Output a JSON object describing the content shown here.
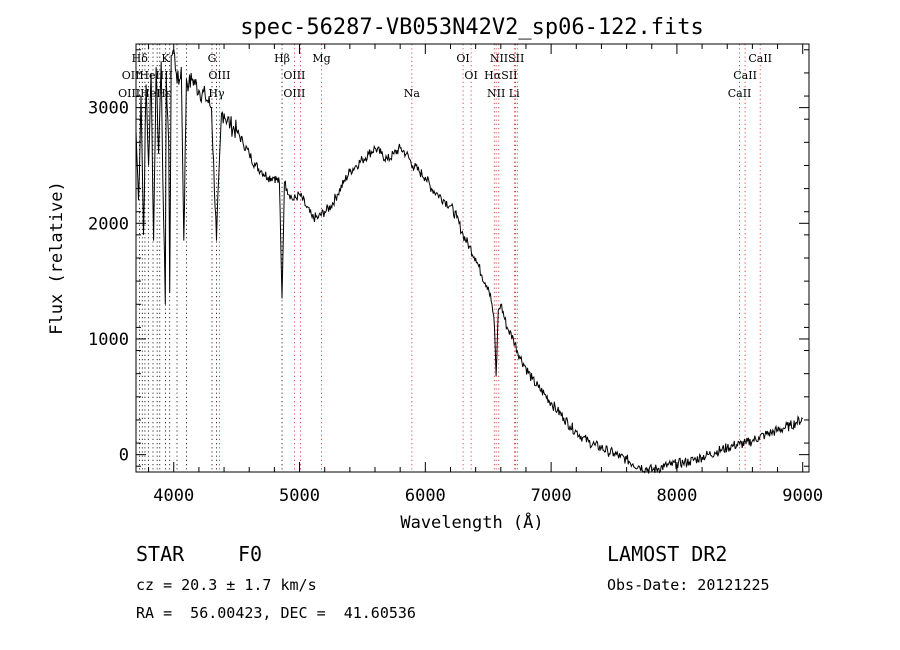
{
  "chart_data": {
    "type": "line",
    "title": "spec-56287-VB053N42V2_sp06-122.fits",
    "xlabel": "Wavelength (Å)",
    "ylabel": "Flux (relative)",
    "xlim": [
      3700,
      9050
    ],
    "ylim": [
      -150,
      3550
    ],
    "xticks": [
      4000,
      5000,
      6000,
      7000,
      8000,
      9000
    ],
    "yticks": [
      0,
      1000,
      2000,
      3000
    ],
    "grid": false,
    "series": [
      {
        "x": [
          3700,
          3720,
          3740,
          3760,
          3780,
          3800,
          3820,
          3840,
          3860,
          3880,
          3900,
          3920,
          3933,
          3940,
          3960,
          3968,
          3980,
          4000,
          4020,
          4040,
          4060,
          4080,
          4101,
          4120,
          4150,
          4200,
          4250,
          4300,
          4340,
          4380,
          4400,
          4450,
          4500,
          4550,
          4600,
          4650,
          4700,
          4750,
          4800,
          4840,
          4861,
          4880,
          4900,
          4950,
          5000,
          5050,
          5100,
          5150,
          5200,
          5250,
          5300,
          5350,
          5400,
          5450,
          5500,
          5550,
          5600,
          5650,
          5700,
          5750,
          5800,
          5850,
          5900,
          5950,
          6000,
          6050,
          6100,
          6150,
          6200,
          6250,
          6300,
          6350,
          6400,
          6450,
          6500,
          6530,
          6550,
          6563,
          6580,
          6600,
          6650,
          6700,
          6750,
          6800,
          6850,
          6900,
          6950,
          7000,
          7050,
          7100,
          7150,
          7200,
          7250,
          7300,
          7350,
          7400,
          7450,
          7500,
          7550,
          7600,
          7650,
          7700,
          7750,
          7800,
          7850,
          7900,
          7950,
          8000,
          8050,
          8100,
          8150,
          8200,
          8250,
          8300,
          8350,
          8400,
          8450,
          8500,
          8550,
          8600,
          8650,
          8700,
          8750,
          8800,
          8850,
          8900,
          8950,
          9000
        ],
        "y": [
          2800,
          2200,
          3100,
          1900,
          3200,
          2500,
          3300,
          1850,
          3350,
          2600,
          3400,
          2000,
          1300,
          3300,
          2700,
          1400,
          3450,
          3500,
          3300,
          3200,
          3350,
          1850,
          3250,
          3200,
          3250,
          3150,
          3100,
          3000,
          1850,
          2950,
          2950,
          2850,
          2800,
          2700,
          2600,
          2500,
          2450,
          2400,
          2400,
          2350,
          1350,
          2350,
          2300,
          2200,
          2250,
          2150,
          2050,
          2050,
          2100,
          2150,
          2250,
          2350,
          2450,
          2500,
          2550,
          2600,
          2650,
          2600,
          2550,
          2600,
          2650,
          2600,
          2500,
          2450,
          2400,
          2300,
          2250,
          2200,
          2150,
          2050,
          1900,
          1800,
          1700,
          1550,
          1450,
          1300,
          1100,
          680,
          1250,
          1300,
          1100,
          1000,
          850,
          750,
          650,
          580,
          520,
          450,
          380,
          320,
          250,
          200,
          150,
          110,
          80,
          60,
          30,
          10,
          -20,
          -40,
          -80,
          -100,
          -120,
          -130,
          -120,
          -100,
          -90,
          -80,
          -70,
          -60,
          -40,
          -20,
          0,
          20,
          40,
          60,
          80,
          90,
          100,
          120,
          150,
          170,
          190,
          210,
          230,
          250,
          280,
          310
        ]
      }
    ],
    "line_markers": [
      {
        "label": "Hδ",
        "x": 3730,
        "row": 1
      },
      {
        "label": "K",
        "x": 3934,
        "row": 1
      },
      {
        "label": "G",
        "x": 4304,
        "row": 1
      },
      {
        "label": "Hβ",
        "x": 4861,
        "row": 1
      },
      {
        "label": "Mg",
        "x": 5175,
        "row": 1
      },
      {
        "label": "OI",
        "x": 6300,
        "row": 1
      },
      {
        "label": "NIISII",
        "x": 6650,
        "row": 1
      },
      {
        "label": "CaII",
        "x": 8662,
        "row": 1
      },
      {
        "label": "OIIHeIIII",
        "x": 3790,
        "row": 2
      },
      {
        "label": "OIII",
        "x": 4363,
        "row": 2
      },
      {
        "label": "OIII",
        "x": 4959,
        "row": 2
      },
      {
        "label": "OI",
        "x": 6364,
        "row": 2
      },
      {
        "label": "HαSII",
        "x": 6600,
        "row": 2
      },
      {
        "label": "CaII",
        "x": 8542,
        "row": 2
      },
      {
        "label": "OIIIHeHε",
        "x": 3770,
        "row": 3
      },
      {
        "label": "Hγ",
        "x": 4340,
        "row": 3
      },
      {
        "label": "OIII",
        "x": 4959,
        "row": 3
      },
      {
        "label": "Na",
        "x": 5893,
        "row": 3
      },
      {
        "label": "NII Li",
        "x": 6620,
        "row": 3
      },
      {
        "label": "CaII",
        "x": 8498,
        "row": 3
      }
    ],
    "line_positions_black": [
      3727,
      3750,
      3771,
      3798,
      3835,
      3868,
      3889,
      3934,
      3968,
      4026,
      4101,
      4304,
      4340,
      4861
    ],
    "line_positions_red": [
      4363,
      4959,
      5007,
      5175,
      5893,
      6300,
      6364,
      6548,
      6563,
      6584,
      6708,
      6717,
      6731,
      8498,
      8542,
      8662
    ]
  },
  "info": {
    "class_label": "STAR",
    "subclass": "F0",
    "survey": "LAMOST DR2",
    "cz": "cz = 20.3 ± 1.7 km/s",
    "obs_date": "Obs-Date: 20121225",
    "coords": "RA =  56.00423, DEC =  41.60536"
  }
}
